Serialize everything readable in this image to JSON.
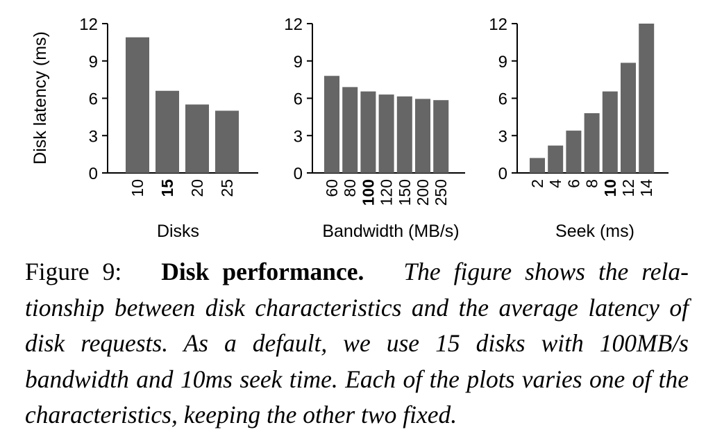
{
  "figure": {
    "label": "Figure 9:",
    "title": "Disk performance.",
    "caption_lines": [
      "The figure shows the rela-",
      "tionship between disk characteristics and the average latency",
      "of disk requests. As a default, we use 15 disks with 100MB/s",
      "bandwidth and 10ms seek time. Each of the plots varies one of",
      "the characteristics, keeping the other two fixed."
    ]
  },
  "colors": {
    "bar": "#666666",
    "axis": "#000000"
  },
  "chart_data": [
    {
      "type": "bar",
      "ylabel": "Disk latency (ms)",
      "xlabel": "Disks",
      "ylim": [
        0,
        12
      ],
      "yticks": [
        0,
        3,
        6,
        9,
        12
      ],
      "categories": [
        "10",
        "15",
        "20",
        "25"
      ],
      "values": [
        10.9,
        6.6,
        5.5,
        5.0
      ],
      "default_category": "15"
    },
    {
      "type": "bar",
      "ylabel": "",
      "xlabel": "Bandwidth (MB/s)",
      "ylim": [
        0,
        12
      ],
      "yticks": [
        0,
        3,
        6,
        9,
        12
      ],
      "categories": [
        "60",
        "80",
        "100",
        "120",
        "150",
        "200",
        "250"
      ],
      "values": [
        7.8,
        6.9,
        6.55,
        6.3,
        6.15,
        5.95,
        5.85
      ],
      "default_category": "100"
    },
    {
      "type": "bar",
      "ylabel": "",
      "xlabel": "Seek (ms)",
      "ylim": [
        0,
        12
      ],
      "yticks": [
        0,
        3,
        6,
        9,
        12
      ],
      "categories": [
        "2",
        "4",
        "6",
        "8",
        "10",
        "12",
        "14"
      ],
      "values": [
        1.2,
        2.2,
        3.4,
        4.8,
        6.55,
        8.85,
        12.0
      ],
      "default_category": "10"
    }
  ]
}
